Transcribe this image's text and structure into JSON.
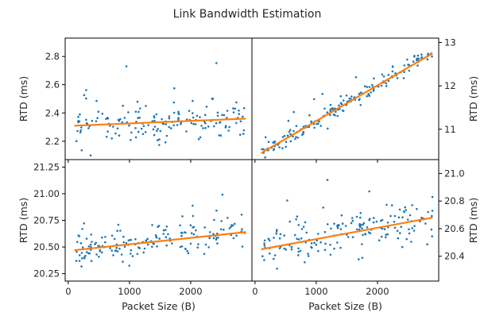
{
  "chart_data": {
    "type": "scatter",
    "title": "Link Bandwidth Estimation",
    "point_color": "#1f77b4",
    "fit_color": "#ff7f0e",
    "grid": false,
    "legend": "none",
    "panels": [
      {
        "id": "top-left",
        "ylabel": "RTD (ms)",
        "ylabel_side": "left",
        "xlabel": "",
        "xlim": [
          -50,
          3000
        ],
        "ylim": [
          2.07,
          2.93
        ],
        "yticks": [
          2.2,
          2.4,
          2.6,
          2.8
        ],
        "ytick_labels": [
          "2.2",
          "2.4",
          "2.6",
          "2.8"
        ],
        "xticks": [
          0,
          1000,
          2000
        ],
        "xtick_labels": [],
        "fit": {
          "x": [
            100,
            2900
          ],
          "y": [
            2.31,
            2.36
          ]
        },
        "points_gen": {
          "seed": 11,
          "n": 170,
          "xmin": 100,
          "xmax": 2900,
          "y0": 2.31,
          "y1": 2.36,
          "noise": 0.07,
          "clip": [
            2.1,
            2.9
          ]
        }
      },
      {
        "id": "top-right",
        "ylabel": "RTD (ms)",
        "ylabel_side": "right",
        "xlabel": "",
        "xlim": [
          -50,
          3000
        ],
        "ylim": [
          10.3,
          13.1
        ],
        "yticks": [
          11,
          12,
          13
        ],
        "ytick_labels": [
          "11",
          "12",
          "13"
        ],
        "xticks": [
          0,
          1000,
          2000
        ],
        "xtick_labels": [],
        "fit": {
          "x": [
            100,
            2900
          ],
          "y": [
            10.45,
            12.75
          ]
        },
        "points_gen": {
          "seed": 23,
          "n": 180,
          "xmin": 100,
          "xmax": 2900,
          "y0": 10.45,
          "y1": 12.75,
          "noise": 0.09,
          "clip": [
            10.35,
            13.05
          ]
        }
      },
      {
        "id": "bottom-left",
        "ylabel": "RTD (ms)",
        "ylabel_side": "left",
        "xlabel": "Packet Size (B)",
        "xlim": [
          -50,
          3000
        ],
        "ylim": [
          20.18,
          21.32
        ],
        "yticks": [
          20.25,
          20.5,
          20.75,
          21.0,
          21.25
        ],
        "ytick_labels": [
          "20.25",
          "20.50",
          "20.75",
          "21.00",
          "21.25"
        ],
        "xticks": [
          0,
          1000,
          2000
        ],
        "xtick_labels": [
          "0",
          "1000",
          "2000"
        ],
        "fit": {
          "x": [
            100,
            2900
          ],
          "y": [
            20.47,
            20.64
          ]
        },
        "points_gen": {
          "seed": 37,
          "n": 170,
          "xmin": 100,
          "xmax": 2900,
          "y0": 20.47,
          "y1": 20.64,
          "noise": 0.08,
          "clip": [
            20.2,
            21.3
          ]
        }
      },
      {
        "id": "bottom-right",
        "ylabel": "RTD (ms)",
        "ylabel_side": "right",
        "xlabel": "Packet Size (B)",
        "xlim": [
          -50,
          3000
        ],
        "ylim": [
          20.22,
          21.1
        ],
        "yticks": [
          20.4,
          20.6,
          20.8,
          21.0
        ],
        "ytick_labels": [
          "20.4",
          "20.6",
          "20.8",
          "21.0"
        ],
        "xticks": [
          0,
          1000,
          2000
        ],
        "xtick_labels": [
          "0",
          "1000",
          "2000"
        ],
        "fit": {
          "x": [
            100,
            2900
          ],
          "y": [
            20.45,
            20.68
          ]
        },
        "points_gen": {
          "seed": 53,
          "n": 170,
          "xmin": 100,
          "xmax": 2900,
          "y0": 20.45,
          "y1": 20.68,
          "noise": 0.08,
          "clip": [
            20.24,
            21.08
          ]
        }
      }
    ]
  }
}
